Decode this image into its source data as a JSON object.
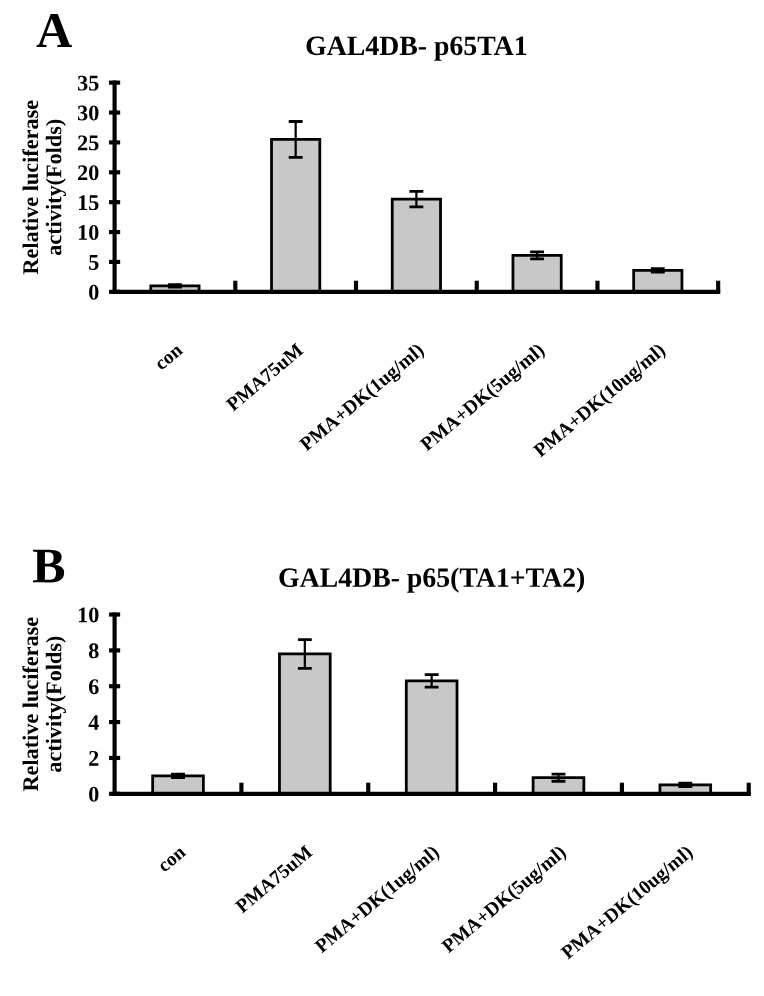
{
  "chart_data": [
    {
      "type": "bar",
      "title": "GAL4DB- p65TA1",
      "ylabel": "Relative luciferase\nactivity(Folds)",
      "annotations": [
        "A"
      ],
      "categories": [
        "con",
        "PMA75uM",
        "PMA+DK(1ug/ml)",
        "PMA+DK(5ug/ml)",
        "PMA+DK(10ug/ml)"
      ],
      "series": [
        {
          "color": "#c8c8c8",
          "values": [
            1,
            25.5,
            15.5,
            6.1,
            3.6
          ],
          "errors": [
            0.2,
            3,
            1.3,
            0.6,
            0.3
          ]
        }
      ],
      "ylim": [
        0,
        35
      ],
      "yticks": [
        0,
        5,
        10,
        15,
        20,
        25,
        30,
        35
      ],
      "grid": false
    },
    {
      "type": "bar",
      "title": "GAL4DB- p65(TA1+TA2)",
      "ylabel": "Relative luciferase\nactivity(Folds)",
      "annotations": [
        "B"
      ],
      "categories": [
        "con",
        "PMA75uM",
        "PMA+DK(1ug/ml)",
        "PMA+DK(5ug/ml)",
        "PMA+DK(10ug/ml)"
      ],
      "series": [
        {
          "color": "#c8c8c8",
          "values": [
            1.0,
            7.8,
            6.3,
            0.9,
            0.5
          ],
          "errors": [
            0.1,
            0.8,
            0.35,
            0.2,
            0.1
          ]
        }
      ],
      "ylim": [
        0,
        10
      ],
      "yticks": [
        0,
        2,
        4,
        6,
        8,
        10
      ],
      "grid": false
    }
  ]
}
